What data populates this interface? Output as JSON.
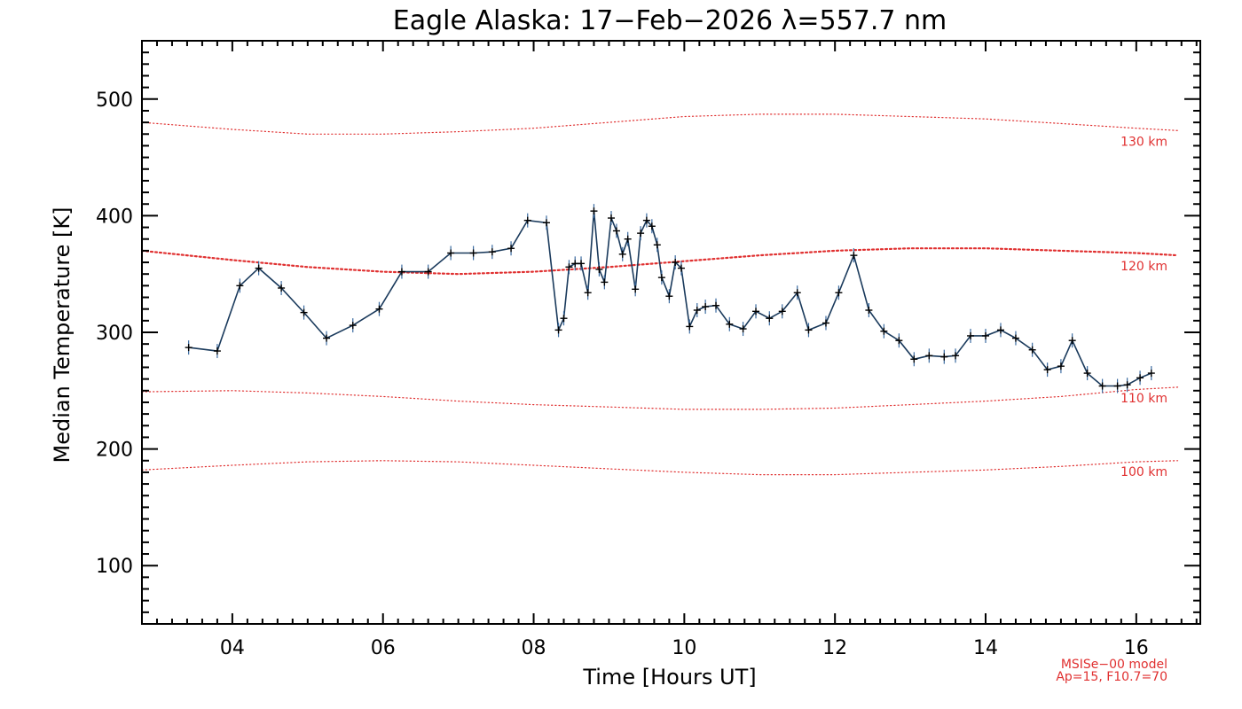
{
  "chart_data": {
    "type": "line",
    "title": "Eagle Alaska: 17−Feb−2026 λ=557.7 nm",
    "xlabel": "Time [Hours UT]",
    "ylabel": "Median Temperature [K]",
    "xlim": [
      2.8,
      16.85
    ],
    "ylim": [
      50,
      550
    ],
    "x_ticks": [
      4,
      6,
      8,
      10,
      12,
      14,
      16
    ],
    "x_tick_labels": [
      "04",
      "06",
      "08",
      "10",
      "12",
      "14",
      "16"
    ],
    "y_ticks": [
      100,
      200,
      300,
      400,
      500
    ],
    "y_tick_labels": [
      "100",
      "200",
      "300",
      "400",
      "500"
    ],
    "grid": false,
    "series": [
      {
        "name": "Median temperature",
        "color": "#1a3a5c",
        "marker_color": "#000000",
        "x": [
          3.42,
          3.8,
          4.1,
          4.35,
          4.65,
          4.95,
          5.25,
          5.6,
          5.95,
          6.25,
          6.6,
          6.9,
          7.2,
          7.45,
          7.7,
          7.92,
          8.17,
          8.33,
          8.4,
          8.47,
          8.55,
          8.63,
          8.72,
          8.8,
          8.87,
          8.94,
          9.03,
          9.1,
          9.18,
          9.25,
          9.35,
          9.42,
          9.5,
          9.57,
          9.64,
          9.7,
          9.8,
          9.88,
          9.96,
          10.07,
          10.17,
          10.28,
          10.42,
          10.6,
          10.78,
          10.95,
          11.13,
          11.3,
          11.5,
          11.65,
          11.88,
          12.05,
          12.25,
          12.45,
          12.65,
          12.85,
          13.05,
          13.25,
          13.45,
          13.6,
          13.8,
          14.0,
          14.2,
          14.4,
          14.62,
          14.82,
          15.0,
          15.15,
          15.35,
          15.55,
          15.75,
          15.88,
          16.05,
          16.2
        ],
        "y": [
          287,
          284,
          340,
          355,
          338,
          317,
          295,
          306,
          320,
          352,
          352,
          368,
          368,
          369,
          372,
          396,
          394,
          302,
          312,
          356,
          359,
          359,
          334,
          404,
          354,
          343,
          398,
          387,
          367,
          380,
          337,
          385,
          396,
          391,
          375,
          347,
          331,
          360,
          355,
          305,
          319,
          322,
          323,
          307,
          303,
          318,
          312,
          318,
          334,
          302,
          308,
          334,
          366,
          319,
          301,
          293,
          277,
          280,
          279,
          280,
          297,
          297,
          302,
          295,
          285,
          268,
          271,
          293,
          265,
          254,
          254,
          255,
          261,
          265
        ]
      }
    ],
    "model_curves": [
      {
        "label": "130 km",
        "color": "#e03030",
        "x": [
          2.8,
          4.0,
          5.0,
          6.0,
          7.0,
          8.0,
          9.0,
          10.0,
          11.0,
          12.0,
          13.0,
          14.0,
          15.0,
          16.0,
          16.55
        ],
        "y": [
          480,
          474,
          470,
          470,
          472,
          475,
          480,
          485,
          487,
          487,
          485,
          483,
          479,
          475,
          473
        ]
      },
      {
        "label": "120 km",
        "color": "#e03030",
        "x": [
          2.8,
          4.0,
          5.0,
          6.0,
          7.0,
          8.0,
          9.0,
          10.0,
          11.0,
          12.0,
          13.0,
          14.0,
          15.0,
          16.0,
          16.55
        ],
        "y": [
          370,
          362,
          356,
          352,
          350,
          352,
          356,
          361,
          366,
          370,
          372,
          372,
          370,
          368,
          366
        ]
      },
      {
        "label": "110 km",
        "color": "#e03030",
        "x": [
          2.8,
          4.0,
          5.0,
          6.0,
          7.0,
          8.0,
          9.0,
          10.0,
          11.0,
          12.0,
          13.0,
          14.0,
          15.0,
          16.0,
          16.55
        ],
        "y": [
          249,
          250,
          248,
          245,
          241,
          238,
          236,
          234,
          234,
          235,
          238,
          241,
          245,
          251,
          253
        ]
      },
      {
        "label": "100 km",
        "color": "#e03030",
        "x": [
          2.8,
          4.0,
          5.0,
          6.0,
          7.0,
          8.0,
          9.0,
          10.0,
          11.0,
          12.0,
          13.0,
          14.0,
          15.0,
          16.0,
          16.55
        ],
        "y": [
          182,
          186,
          189,
          190,
          189,
          186,
          183,
          180,
          178,
          178,
          180,
          182,
          185,
          189,
          190
        ]
      }
    ],
    "model_info_line1": "MSISe−00 model",
    "model_info_line2": "Ap=15, F10.7=70"
  }
}
